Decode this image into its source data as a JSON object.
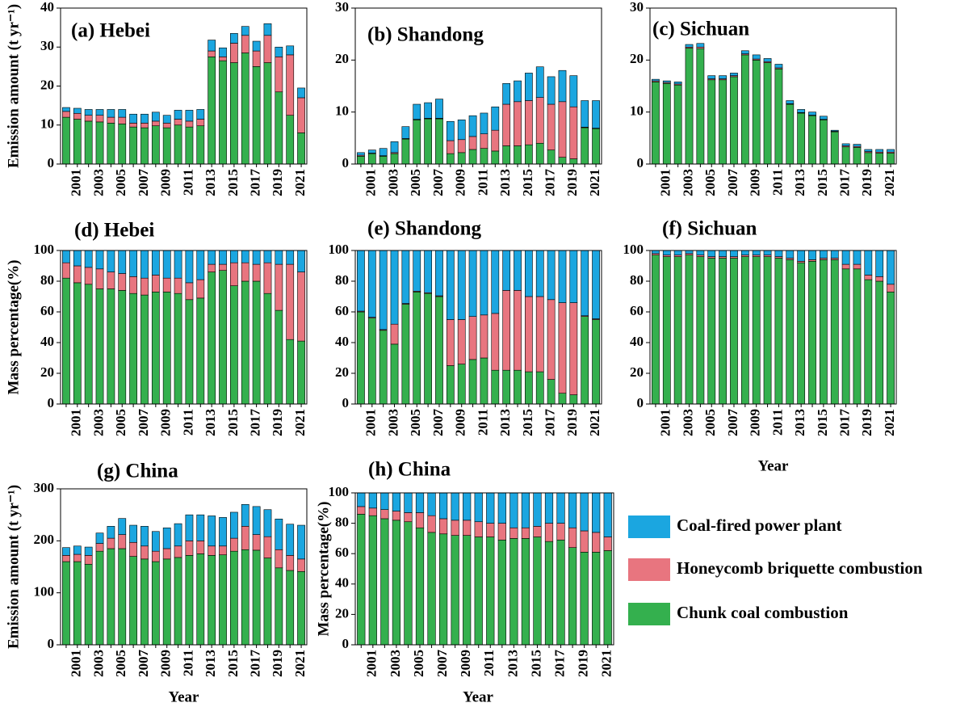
{
  "legend": [
    {
      "name": "Coal-fired power plant",
      "color": "#1ba6e0"
    },
    {
      "name": "Honeycomb briquette combustion",
      "color": "#e8757f"
    },
    {
      "name": "Chunk coal combustion",
      "color": "#34b04e"
    }
  ],
  "chart_data": [
    {
      "type": "bar",
      "title": "(a) Hebei",
      "ylabel": "Emission amount (t yr⁻¹)",
      "ylim": [
        0,
        40
      ],
      "yticks": [
        0,
        10,
        20,
        30,
        40
      ],
      "categories": [
        null,
        "2001",
        null,
        "2003",
        null,
        "2005",
        null,
        "2007",
        null,
        "2009",
        null,
        "2011",
        null,
        "2013",
        null,
        "2015",
        null,
        "2017",
        null,
        "2019",
        null,
        "2021"
      ],
      "series": [
        {
          "values": [
            1,
            1.3,
            1.5,
            1.5,
            2,
            2,
            2.3,
            2.3,
            2.3,
            2,
            2.3,
            2.8,
            2.5,
            2.8,
            2.3,
            2.5,
            2.3,
            2.5,
            3,
            2.5,
            2.3,
            2.5
          ]
        },
        {
          "values": [
            1.5,
            1.5,
            1.5,
            1.7,
            1.5,
            1.7,
            1,
            1.2,
            1.2,
            1.2,
            1.5,
            1.5,
            1.7,
            1.5,
            1,
            5,
            4.5,
            4,
            7,
            9,
            15.5,
            9
          ]
        },
        {
          "values": [
            12,
            11.5,
            11,
            10.8,
            10.5,
            10.3,
            9.5,
            9.3,
            9.8,
            9.3,
            10,
            9.5,
            9.8,
            27.5,
            26.5,
            26,
            28.5,
            25,
            26,
            18.5,
            12.5,
            8
          ]
        }
      ]
    },
    {
      "type": "bar",
      "title": "(b) Shandong",
      "ylim": [
        0,
        30
      ],
      "yticks": [
        0,
        10,
        20,
        30
      ],
      "categories": [
        null,
        "2001",
        null,
        "2003",
        null,
        "2005",
        null,
        "2007",
        null,
        "2009",
        null,
        "2011",
        null,
        "2013",
        null,
        "2015",
        null,
        "2017",
        null,
        "2019",
        null,
        "2021"
      ],
      "series": [
        {
          "values": [
            0.5,
            0.6,
            1.4,
            2.1,
            2.3,
            2.9,
            3,
            3.7,
            3.7,
            3.8,
            4,
            4,
            4.5,
            4,
            4,
            5.3,
            5.9,
            5.3,
            6,
            6,
            5.1,
            5.3
          ]
        },
        {
          "values": [
            0.2,
            0.1,
            0.1,
            0.2,
            0.1,
            0.1,
            0.1,
            0.1,
            2.5,
            2.5,
            2.5,
            2.8,
            4,
            8,
            8.5,
            8.5,
            8.8,
            8.8,
            10.7,
            10,
            0.1,
            0.1
          ]
        },
        {
          "values": [
            1.5,
            2,
            1.5,
            2,
            4.8,
            8.5,
            8.7,
            8.7,
            2,
            2.2,
            2.8,
            3,
            2.5,
            3.5,
            3.5,
            3.7,
            4,
            2.7,
            1.3,
            1,
            7,
            6.8
          ]
        }
      ]
    },
    {
      "type": "bar",
      "title": "(c) Sichuan",
      "ylim": [
        0,
        30
      ],
      "yticks": [
        0,
        10,
        20,
        30
      ],
      "categories": [
        null,
        "2001",
        null,
        "2003",
        null,
        "2005",
        null,
        "2007",
        null,
        "2009",
        null,
        "2011",
        null,
        "2013",
        null,
        "2015",
        null,
        "2017",
        null,
        "2019",
        null,
        "2021"
      ],
      "series": [
        {
          "values": [
            0.3,
            0.3,
            0.4,
            0.5,
            0.7,
            0.6,
            0.6,
            0.5,
            0.6,
            0.8,
            0.6,
            0.7,
            0.6,
            0.6,
            0.6,
            0.6,
            0.2,
            0.4,
            0.4,
            0.4,
            0.5,
            0.5
          ]
        },
        {
          "values": [
            0.2,
            0.2,
            0.2,
            0.2,
            0.3,
            0.2,
            0.2,
            0.2,
            0.2,
            0.2,
            0.2,
            0.2,
            0.1,
            0.1,
            0.1,
            0.1,
            0.1,
            0.2,
            0.2,
            0.2,
            0.2,
            0.2
          ]
        },
        {
          "values": [
            15.8,
            15.5,
            15.2,
            22.3,
            22.2,
            16.2,
            16.2,
            16.8,
            21,
            20,
            19.5,
            18.3,
            11.5,
            9.8,
            9.3,
            8.5,
            6.2,
            3.3,
            3.2,
            2.2,
            2.1,
            2.1
          ]
        }
      ]
    },
    {
      "type": "bar",
      "title": "(d) Hebei",
      "ylabel": "Mass percentage(%)",
      "ylim": [
        0,
        100
      ],
      "yticks": [
        0,
        20,
        40,
        60,
        80,
        100
      ],
      "categories": [
        null,
        "2001",
        null,
        "2003",
        null,
        "2005",
        null,
        "2007",
        null,
        "2009",
        null,
        "2011",
        null,
        "2013",
        null,
        "2015",
        null,
        "2017",
        null,
        "2019",
        null,
        "2021"
      ],
      "series": [
        {
          "values": [
            8,
            10,
            11,
            12,
            14,
            15,
            17,
            18,
            16,
            18,
            18,
            21,
            19,
            9,
            9,
            8,
            8,
            9,
            8,
            9,
            9,
            14
          ]
        },
        {
          "values": [
            10,
            11,
            11,
            13,
            11,
            11,
            11,
            11,
            11,
            9,
            10,
            11,
            12,
            5,
            4,
            15,
            12,
            11,
            20,
            30,
            49,
            45
          ]
        },
        {
          "values": [
            82,
            79,
            78,
            75,
            75,
            74,
            72,
            71,
            73,
            73,
            72,
            68,
            69,
            86,
            87,
            77,
            80,
            80,
            72,
            61,
            42,
            41
          ]
        }
      ]
    },
    {
      "type": "bar",
      "title": "(e) Shandong",
      "ylim": [
        0,
        100
      ],
      "yticks": [
        0,
        20,
        40,
        60,
        80,
        100
      ],
      "categories": [
        null,
        "2001",
        null,
        "2003",
        null,
        "2005",
        null,
        "2007",
        null,
        "2009",
        null,
        "2011",
        null,
        "2013",
        null,
        "2015",
        null,
        "2017",
        null,
        "2019",
        null,
        "2021"
      ],
      "series": [
        {
          "values": [
            39.5,
            43.5,
            51.5,
            48,
            34.5,
            26.5,
            27.5,
            29.5,
            45,
            45,
            43,
            42,
            41,
            26,
            26,
            30,
            30,
            32,
            34,
            34,
            42.5,
            44.5
          ]
        },
        {
          "values": [
            0.5,
            0.5,
            0.5,
            13,
            0.5,
            0.5,
            0.5,
            0.5,
            30,
            29,
            28,
            28,
            37,
            52,
            52,
            49,
            49,
            52,
            59,
            60,
            0.5,
            0.5
          ]
        },
        {
          "values": [
            60,
            56,
            48,
            39,
            65,
            73,
            72,
            70,
            25,
            26,
            29,
            30,
            22,
            22,
            22,
            21,
            21,
            16,
            7,
            6,
            57,
            55
          ]
        }
      ]
    },
    {
      "type": "bar",
      "title": "(f) Sichuan",
      "xlabel": "Year",
      "ylim": [
        0,
        100
      ],
      "yticks": [
        0,
        20,
        40,
        60,
        80,
        100
      ],
      "categories": [
        null,
        "2001",
        null,
        "2003",
        null,
        "2005",
        null,
        "2007",
        null,
        "2009",
        null,
        "2011",
        null,
        "2013",
        null,
        "2015",
        null,
        "2017",
        null,
        "2019",
        null,
        "2021"
      ],
      "series": [
        {
          "values": [
            2,
            3,
            3,
            2,
            3,
            4,
            4,
            4,
            3,
            3,
            3,
            4,
            5,
            7,
            6,
            5,
            5,
            9,
            9,
            16,
            17,
            22
          ]
        },
        {
          "values": [
            1,
            1,
            1,
            1,
            1,
            1,
            1,
            1,
            1,
            1,
            1,
            1,
            1,
            1,
            1,
            1,
            1,
            3,
            3,
            3,
            3,
            5
          ]
        },
        {
          "values": [
            97,
            96,
            96,
            97,
            96,
            95,
            95,
            95,
            96,
            96,
            96,
            95,
            94,
            92,
            93,
            94,
            94,
            88,
            88,
            81,
            80,
            73
          ]
        }
      ]
    },
    {
      "type": "bar",
      "title": "(g) China",
      "ylabel": "Emission amount (t yr⁻¹)",
      "xlabel": "Year",
      "ylim": [
        0,
        300
      ],
      "yticks": [
        0,
        100,
        200,
        300
      ],
      "categories": [
        null,
        "2001",
        null,
        "2003",
        null,
        "2005",
        null,
        "2007",
        null,
        "2009",
        null,
        "2011",
        null,
        "2013",
        null,
        "2015",
        null,
        "2017",
        null,
        "2019",
        null,
        "2021"
      ],
      "series": [
        {
          "values": [
            15,
            16,
            16,
            20,
            23,
            31,
            33,
            38,
            38,
            40,
            43,
            50,
            50,
            58,
            55,
            50,
            42,
            54,
            52,
            59,
            60,
            65
          ]
        },
        {
          "values": [
            12,
            14,
            17,
            15,
            20,
            27,
            27,
            25,
            20,
            20,
            22,
            28,
            25,
            18,
            17,
            25,
            45,
            30,
            41,
            35,
            29,
            24
          ]
        },
        {
          "values": [
            160,
            160,
            155,
            180,
            185,
            185,
            170,
            165,
            160,
            165,
            168,
            172,
            175,
            172,
            173,
            180,
            183,
            182,
            167,
            148,
            143,
            141
          ]
        }
      ]
    },
    {
      "type": "bar",
      "title": "(h) China",
      "ylabel": "Mass percentage(%)",
      "xlabel": "Year",
      "ylim": [
        0,
        100
      ],
      "yticks": [
        0,
        20,
        40,
        60,
        80,
        100
      ],
      "categories": [
        null,
        "2001",
        null,
        "2003",
        null,
        "2005",
        null,
        "2007",
        null,
        "2009",
        null,
        "2011",
        null,
        "2013",
        null,
        "2015",
        null,
        "2017",
        null,
        "2019",
        null,
        "2021"
      ],
      "series": [
        {
          "values": [
            9,
            10,
            11,
            12,
            13,
            13,
            15,
            17,
            18,
            18,
            19,
            20,
            20,
            23,
            23,
            22,
            20,
            20,
            23,
            25,
            26,
            29
          ]
        },
        {
          "values": [
            5,
            5,
            6,
            6,
            6,
            10,
            11,
            10,
            10,
            10,
            10,
            9,
            11,
            7,
            7,
            7,
            12,
            11,
            13,
            14,
            13,
            9
          ]
        },
        {
          "values": [
            86,
            85,
            83,
            82,
            81,
            77,
            74,
            73,
            72,
            72,
            71,
            71,
            69,
            70,
            70,
            71,
            68,
            69,
            64,
            61,
            61,
            62
          ]
        }
      ]
    }
  ]
}
